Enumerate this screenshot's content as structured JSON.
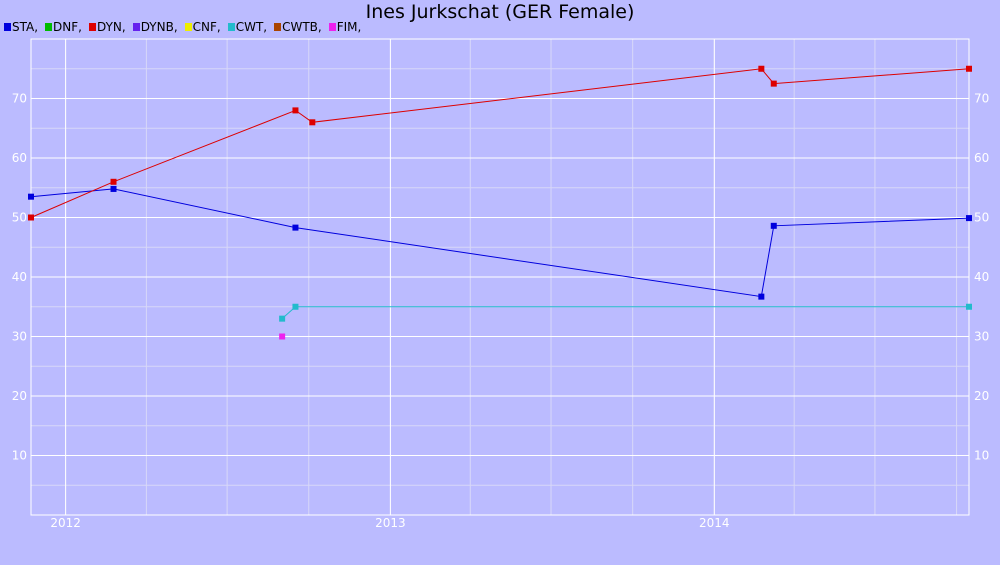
{
  "chart_data": {
    "type": "line",
    "title": "Ines Jurkschat (GER Female)",
    "xlabel": "",
    "ylabel": "",
    "x_ticks": [
      "2012",
      "2013",
      "2014"
    ],
    "y_ticks": [
      10,
      20,
      30,
      40,
      50,
      60,
      70
    ],
    "xlim": [
      "2011-11-23",
      "2014-10-15"
    ],
    "ylim": [
      0,
      80
    ],
    "grid": true,
    "legend": "top-left",
    "legend_entries": [
      {
        "label": "STA,",
        "color": "#0000dd"
      },
      {
        "label": "DNF,",
        "color": "#00bb00"
      },
      {
        "label": "DYN,",
        "color": "#dd0000"
      },
      {
        "label": "DYNB,",
        "color": "#6622ee"
      },
      {
        "label": "CNF,",
        "color": "#eeee00"
      },
      {
        "label": "CWT,",
        "color": "#22bbcc"
      },
      {
        "label": "CWTB,",
        "color": "#aa4400"
      },
      {
        "label": "FIM,",
        "color": "#ee22ee"
      }
    ],
    "series": [
      {
        "name": "STA",
        "color": "#0000dd",
        "points": [
          {
            "x": "2011-11-23",
            "y": 53.5
          },
          {
            "x": "2012-02-24",
            "y": 54.8
          },
          {
            "x": "2012-09-16",
            "y": 48.3
          },
          {
            "x": "2014-02-23",
            "y": 36.7
          },
          {
            "x": "2014-03-09",
            "y": 48.6
          },
          {
            "x": "2014-10-15",
            "y": 49.9
          }
        ]
      },
      {
        "name": "DYN",
        "color": "#dd0000",
        "points": [
          {
            "x": "2011-11-23",
            "y": 50
          },
          {
            "x": "2012-02-24",
            "y": 56
          },
          {
            "x": "2012-09-16",
            "y": 68
          },
          {
            "x": "2012-10-05",
            "y": 66
          },
          {
            "x": "2014-02-23",
            "y": 75
          },
          {
            "x": "2014-03-09",
            "y": 72.5
          },
          {
            "x": "2014-10-15",
            "y": 75
          }
        ]
      },
      {
        "name": "CWT",
        "color": "#22bbcc",
        "points": [
          {
            "x": "2012-09-01",
            "y": 33
          },
          {
            "x": "2012-09-16",
            "y": 35
          },
          {
            "x": "2014-10-15",
            "y": 35
          }
        ]
      },
      {
        "name": "FIM",
        "color": "#ee22ee",
        "points": [
          {
            "x": "2012-09-01",
            "y": 30
          }
        ]
      }
    ]
  }
}
